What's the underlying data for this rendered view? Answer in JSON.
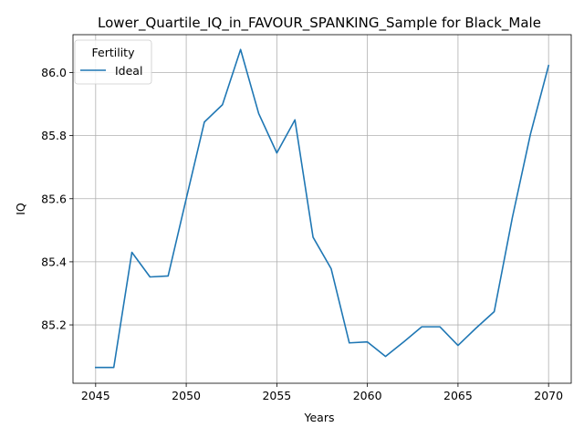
{
  "chart_data": {
    "type": "line",
    "title": "Lower_Quartile_IQ_in_FAVOUR_SPANKING_Sample for Black_Male",
    "xlabel": "Years",
    "ylabel": "IQ",
    "xlim": [
      2043.75,
      2071.25
    ],
    "ylim": [
      85.015,
      86.12
    ],
    "xticks": [
      2045,
      2050,
      2055,
      2060,
      2065,
      2070
    ],
    "yticks": [
      85.2,
      85.4,
      85.6,
      85.8,
      86.0
    ],
    "grid": true,
    "legend": {
      "title": "Fertility",
      "placement": "upper-left"
    },
    "series": [
      {
        "name": "Ideal",
        "color": "#1f77b4",
        "x": [
          2045,
          2046,
          2047,
          2048,
          2049,
          2050,
          2051,
          2052,
          2053,
          2054,
          2055,
          2056,
          2057,
          2058,
          2059,
          2060,
          2061,
          2062,
          2063,
          2064,
          2065,
          2066,
          2067,
          2068,
          2069,
          2070
        ],
        "y": [
          85.065,
          85.065,
          85.43,
          85.352,
          85.355,
          85.6,
          85.843,
          85.898,
          86.073,
          85.87,
          85.745,
          85.85,
          85.478,
          85.378,
          85.143,
          85.146,
          85.1,
          85.146,
          85.194,
          85.194,
          85.135,
          85.19,
          85.242,
          85.54,
          85.805,
          86.022
        ]
      }
    ]
  }
}
